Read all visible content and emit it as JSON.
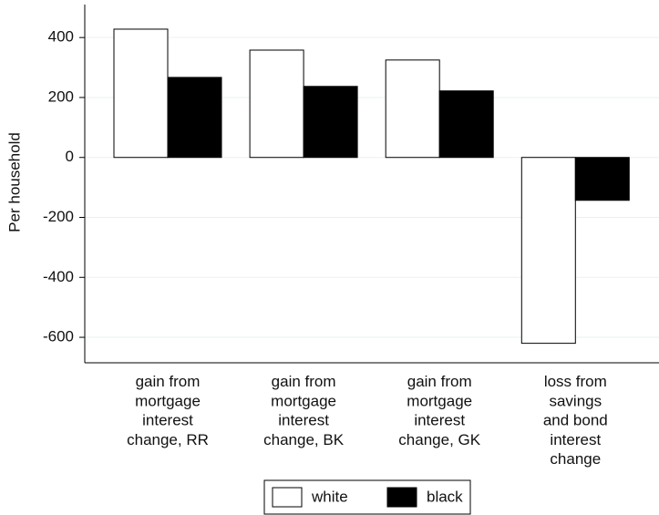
{
  "chart_data": {
    "type": "bar",
    "y_label": "Per household",
    "categories": [
      [
        "gain from",
        "mortgage",
        "interest",
        "change, RR"
      ],
      [
        "gain from",
        "mortgage",
        "interest",
        "change, BK"
      ],
      [
        "gain from",
        "mortgage",
        "interest",
        "change, GK"
      ],
      [
        "loss from",
        "savings",
        "and bond",
        "interest",
        "change"
      ]
    ],
    "series": [
      {
        "name": "white",
        "color": "#ffffff",
        "values": [
          428,
          358,
          325,
          -620
        ]
      },
      {
        "name": "black",
        "color": "#000000",
        "values": [
          267,
          237,
          222,
          -143
        ]
      }
    ],
    "ylim": [
      -685,
      510
    ],
    "yticks": [
      400,
      200,
      0,
      -200,
      -400,
      -600
    ],
    "grid": true
  }
}
